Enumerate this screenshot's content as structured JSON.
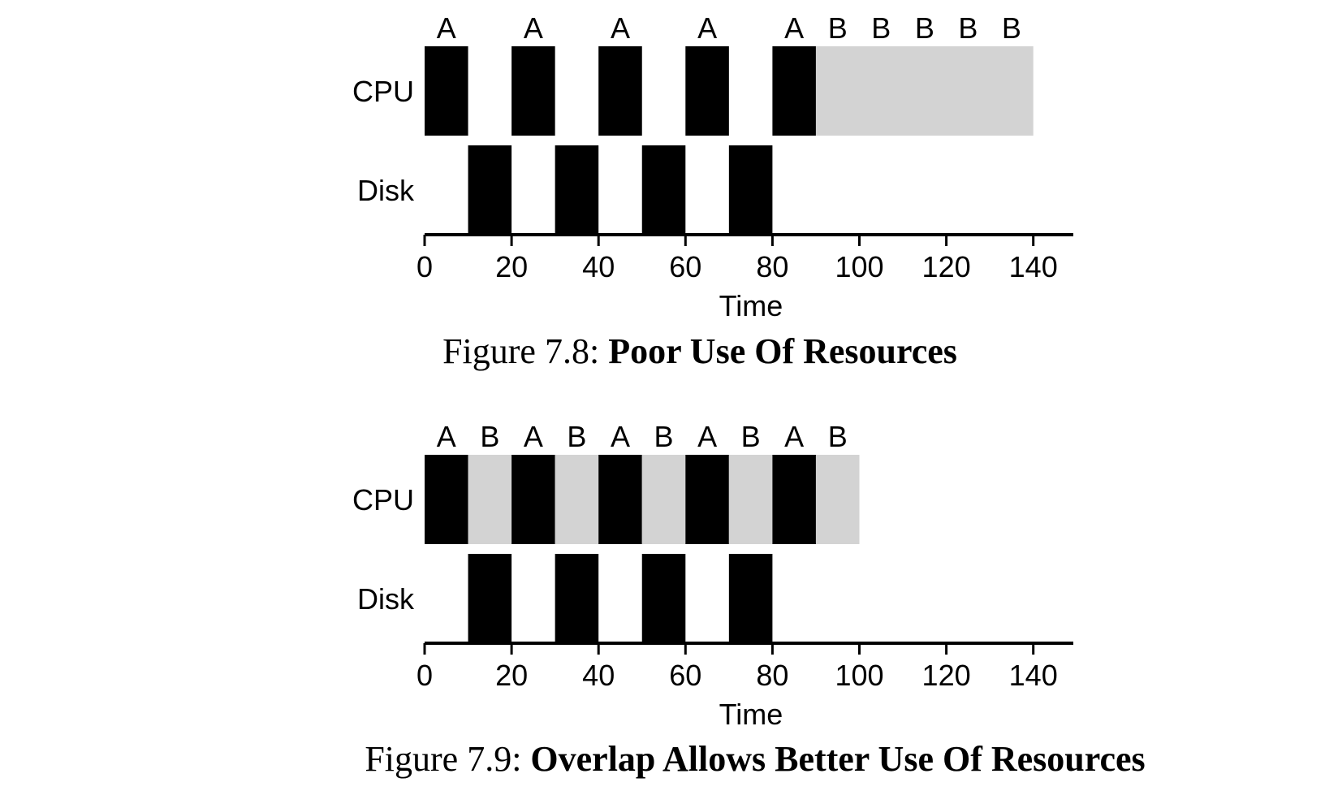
{
  "chart_data": [
    {
      "type": "gantt",
      "caption": {
        "prefix": "Figure 7.8: ",
        "title": "Poor Use Of Resources"
      },
      "xlabel": "Time",
      "xlim": [
        0,
        150
      ],
      "xticks": [
        0,
        20,
        40,
        60,
        80,
        100,
        120,
        140
      ],
      "rows": [
        {
          "label": "CPU",
          "segments": [
            {
              "start": 0,
              "end": 10,
              "job": "A",
              "color": "#000000"
            },
            {
              "start": 20,
              "end": 30,
              "job": "A",
              "color": "#000000"
            },
            {
              "start": 40,
              "end": 50,
              "job": "A",
              "color": "#000000"
            },
            {
              "start": 60,
              "end": 70,
              "job": "A",
              "color": "#000000"
            },
            {
              "start": 80,
              "end": 90,
              "job": "A",
              "color": "#000000"
            },
            {
              "start": 90,
              "end": 140,
              "job": "",
              "color": "#d3d3d3"
            }
          ]
        },
        {
          "label": "Disk",
          "segments": [
            {
              "start": 10,
              "end": 20,
              "job": "",
              "color": "#000000"
            },
            {
              "start": 30,
              "end": 40,
              "job": "",
              "color": "#000000"
            },
            {
              "start": 50,
              "end": 60,
              "job": "",
              "color": "#000000"
            },
            {
              "start": 70,
              "end": 80,
              "job": "",
              "color": "#000000"
            }
          ]
        }
      ],
      "top_labels": [
        {
          "x": 5,
          "text": "A"
        },
        {
          "x": 25,
          "text": "A"
        },
        {
          "x": 45,
          "text": "A"
        },
        {
          "x": 65,
          "text": "A"
        },
        {
          "x": 85,
          "text": "A"
        },
        {
          "x": 95,
          "text": "B"
        },
        {
          "x": 105,
          "text": "B"
        },
        {
          "x": 115,
          "text": "B"
        },
        {
          "x": 125,
          "text": "B"
        },
        {
          "x": 135,
          "text": "B"
        }
      ]
    },
    {
      "type": "gantt",
      "caption": {
        "prefix": "Figure 7.9: ",
        "title": "Overlap Allows Better Use Of Resources"
      },
      "xlabel": "Time",
      "xlim": [
        0,
        150
      ],
      "xticks": [
        0,
        20,
        40,
        60,
        80,
        100,
        120,
        140
      ],
      "rows": [
        {
          "label": "CPU",
          "segments": [
            {
              "start": 0,
              "end": 10,
              "job": "A",
              "color": "#000000"
            },
            {
              "start": 10,
              "end": 20,
              "job": "B",
              "color": "#d3d3d3"
            },
            {
              "start": 20,
              "end": 30,
              "job": "A",
              "color": "#000000"
            },
            {
              "start": 30,
              "end": 40,
              "job": "B",
              "color": "#d3d3d3"
            },
            {
              "start": 40,
              "end": 50,
              "job": "A",
              "color": "#000000"
            },
            {
              "start": 50,
              "end": 60,
              "job": "B",
              "color": "#d3d3d3"
            },
            {
              "start": 60,
              "end": 70,
              "job": "A",
              "color": "#000000"
            },
            {
              "start": 70,
              "end": 80,
              "job": "B",
              "color": "#d3d3d3"
            },
            {
              "start": 80,
              "end": 90,
              "job": "A",
              "color": "#000000"
            },
            {
              "start": 90,
              "end": 100,
              "job": "B",
              "color": "#d3d3d3"
            }
          ]
        },
        {
          "label": "Disk",
          "segments": [
            {
              "start": 10,
              "end": 20,
              "job": "",
              "color": "#000000"
            },
            {
              "start": 30,
              "end": 40,
              "job": "",
              "color": "#000000"
            },
            {
              "start": 50,
              "end": 60,
              "job": "",
              "color": "#000000"
            },
            {
              "start": 70,
              "end": 80,
              "job": "",
              "color": "#000000"
            }
          ]
        }
      ],
      "top_labels": [
        {
          "x": 5,
          "text": "A"
        },
        {
          "x": 15,
          "text": "B"
        },
        {
          "x": 25,
          "text": "A"
        },
        {
          "x": 35,
          "text": "B"
        },
        {
          "x": 45,
          "text": "A"
        },
        {
          "x": 55,
          "text": "B"
        },
        {
          "x": 65,
          "text": "A"
        },
        {
          "x": 75,
          "text": "B"
        },
        {
          "x": 85,
          "text": "A"
        },
        {
          "x": 95,
          "text": "B"
        }
      ]
    }
  ]
}
